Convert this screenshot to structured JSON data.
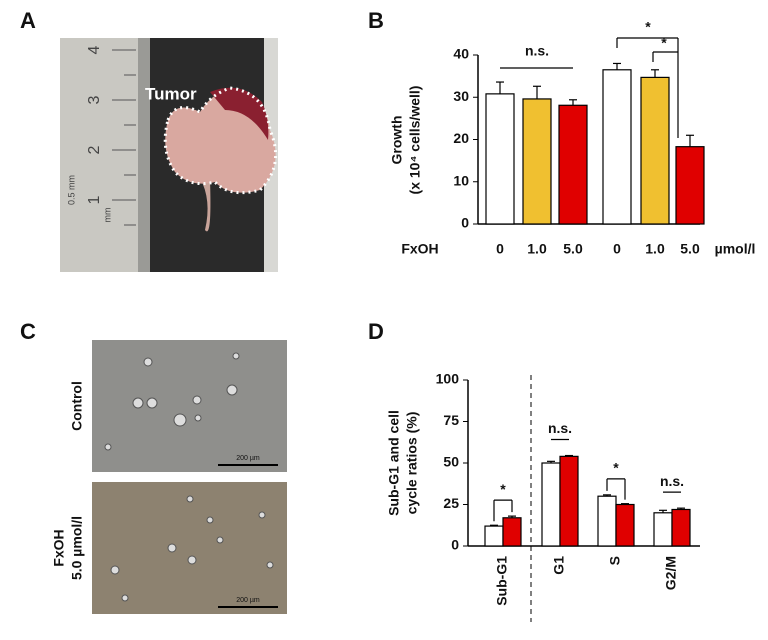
{
  "panel_labels": [
    "A",
    "B",
    "C",
    "D"
  ],
  "photos": {
    "tumor_label": "Tumor",
    "ruler_marks": [
      "1",
      "2",
      "3",
      "4"
    ],
    "ruler_unit": "0.5 mm",
    "ruler_mm": "mm",
    "row_labels": [
      "Control",
      "FxOH",
      "5.0 µmol/l"
    ],
    "scale_bar": "200 µm"
  },
  "chart_data": [
    {
      "type": "bar",
      "ylabel": [
        "Growth",
        "(x 10⁴ cells/well)"
      ],
      "x_label": "FxOH",
      "x_unit": "µmol/l",
      "categories": [
        "0",
        "1.0",
        "5.0",
        "0",
        "1.0",
        "5.0"
      ],
      "series": [
        {
          "values": [
            30.8,
            29.6,
            28.1,
            36.5,
            34.7,
            18.3
          ],
          "errors": [
            2.8,
            3.0,
            1.3,
            1.5,
            1.8,
            2.7
          ],
          "colors": [
            "#ffffff",
            "#f0c030",
            "#e00000",
            "#ffffff",
            "#f0c030",
            "#e00000"
          ]
        }
      ],
      "ylim": [
        0,
        40
      ],
      "yticks": [
        0,
        10,
        20,
        30,
        40
      ],
      "annotations": [
        "n.s.",
        "*",
        "*"
      ]
    },
    {
      "type": "bar",
      "ylabel": [
        "Sub-G1 and cell",
        "cycle ratios (%)"
      ],
      "categories": [
        "Sub-G1",
        "G1",
        "S",
        "G2/M"
      ],
      "series": [
        {
          "color": "#ffffff",
          "values": [
            12,
            50,
            30,
            20
          ],
          "errors": [
            0.5,
            1.0,
            0.8,
            1.5
          ]
        },
        {
          "color": "#e00000",
          "values": [
            17,
            54,
            25,
            22
          ],
          "errors": [
            1.0,
            0.5,
            0.5,
            0.8
          ]
        }
      ],
      "ylim": [
        0,
        100
      ],
      "yticks": [
        0,
        25,
        50,
        75,
        100
      ],
      "annotations": [
        "*",
        "n.s.",
        "*",
        "n.s."
      ]
    }
  ]
}
